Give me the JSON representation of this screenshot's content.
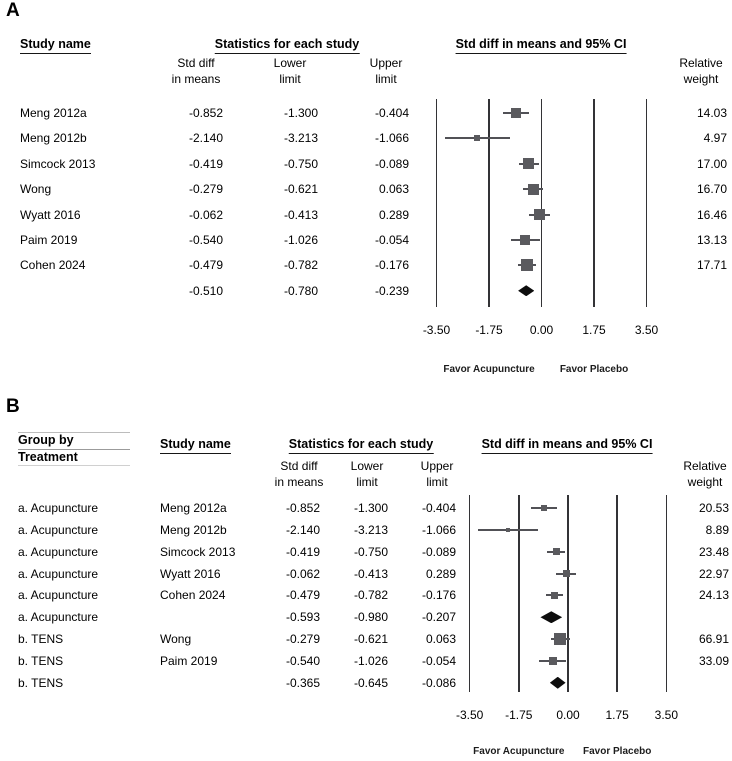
{
  "figure": {
    "colors": {
      "marker": "#5a5a5e",
      "ci_line": "#515156",
      "diamond": "#0d0d0d",
      "gridline": "#333336",
      "text": "#000000"
    },
    "panels": [
      {
        "label": "A",
        "headers": {
          "study": "Study name",
          "stats": "Statistics for each study",
          "ci": "Std diff in means and 95% CI"
        },
        "subheaders": {
          "mean": [
            "Std diff",
            "in means"
          ],
          "lower": [
            "Lower",
            "limit"
          ],
          "upper": [
            "Upper",
            "limit"
          ],
          "weight": [
            "Relative",
            "weight"
          ]
        },
        "rows": [
          {
            "study": "Meng 2012a",
            "mean": "-0.852",
            "lower": "-1.300",
            "upper": "-0.404",
            "weight": "14.03",
            "summary": false
          },
          {
            "study": "Meng 2012b",
            "mean": "-2.140",
            "lower": "-3.213",
            "upper": "-1.066",
            "weight": "4.97",
            "summary": false
          },
          {
            "study": "Simcock 2013",
            "mean": "-0.419",
            "lower": "-0.750",
            "upper": "-0.089",
            "weight": "17.00",
            "summary": false
          },
          {
            "study": "Wong",
            "mean": "-0.279",
            "lower": "-0.621",
            "upper": "0.063",
            "weight": "16.70",
            "summary": false
          },
          {
            "study": "Wyatt 2016",
            "mean": "-0.062",
            "lower": "-0.413",
            "upper": "0.289",
            "weight": "16.46",
            "summary": false
          },
          {
            "study": "Paim 2019",
            "mean": "-0.540",
            "lower": "-1.026",
            "upper": "-0.054",
            "weight": "13.13",
            "summary": false
          },
          {
            "study": "Cohen 2024",
            "mean": "-0.479",
            "lower": "-0.782",
            "upper": "-0.176",
            "weight": "17.71",
            "summary": false
          },
          {
            "study": "",
            "mean": "-0.510",
            "lower": "-0.780",
            "upper": "-0.239",
            "weight": "",
            "summary": true
          }
        ],
        "axis_ticks": [
          "-3.50",
          "-1.75",
          "0.00",
          "1.75",
          "3.50"
        ],
        "favor_left": "Favor Acupuncture",
        "favor_right": "Favor Placebo"
      },
      {
        "label": "B",
        "group_header": [
          "Group by",
          "Treatment"
        ],
        "headers": {
          "study": "Study name",
          "stats": "Statistics for each study",
          "ci": "Std diff in means and 95% CI"
        },
        "subheaders": {
          "mean": [
            "Std diff",
            "in means"
          ],
          "lower": [
            "Lower",
            "limit"
          ],
          "upper": [
            "Upper",
            "limit"
          ],
          "weight": [
            "Relative",
            "weight"
          ]
        },
        "rows": [
          {
            "group": "a. Acupuncture",
            "study": "Meng 2012a",
            "mean": "-0.852",
            "lower": "-1.300",
            "upper": "-0.404",
            "weight": "20.53",
            "summary": false
          },
          {
            "group": "a. Acupuncture",
            "study": "Meng 2012b",
            "mean": "-2.140",
            "lower": "-3.213",
            "upper": "-1.066",
            "weight": "8.89",
            "summary": false
          },
          {
            "group": "a. Acupuncture",
            "study": "Simcock 2013",
            "mean": "-0.419",
            "lower": "-0.750",
            "upper": "-0.089",
            "weight": "23.48",
            "summary": false
          },
          {
            "group": "a. Acupuncture",
            "study": "Wyatt 2016",
            "mean": "-0.062",
            "lower": "-0.413",
            "upper": "0.289",
            "weight": "22.97",
            "summary": false
          },
          {
            "group": "a. Acupuncture",
            "study": "Cohen 2024",
            "mean": "-0.479",
            "lower": "-0.782",
            "upper": "-0.176",
            "weight": "24.13",
            "summary": false
          },
          {
            "group": "a. Acupuncture",
            "study": "",
            "mean": "-0.593",
            "lower": "-0.980",
            "upper": "-0.207",
            "weight": "",
            "summary": true
          },
          {
            "group": "b. TENS",
            "study": "Wong",
            "mean": "-0.279",
            "lower": "-0.621",
            "upper": "0.063",
            "weight": "66.91",
            "summary": false
          },
          {
            "group": "b. TENS",
            "study": "Paim 2019",
            "mean": "-0.540",
            "lower": "-1.026",
            "upper": "-0.054",
            "weight": "33.09",
            "summary": false
          },
          {
            "group": "b. TENS",
            "study": "",
            "mean": "-0.365",
            "lower": "-0.645",
            "upper": "-0.086",
            "weight": "",
            "summary": true
          }
        ],
        "axis_ticks": [
          "-3.50",
          "-1.75",
          "0.00",
          "1.75",
          "3.50"
        ],
        "favor_left": "Favor Acupuncture",
        "favor_right": "Favor Placebo"
      }
    ]
  },
  "chart_data": [
    {
      "type": "scatter",
      "subtype": "forest-plot",
      "title": "A",
      "effect_measure": "Std diff in means and 95% CI",
      "xlabel": "Std diff in means",
      "x_ticks": [
        -3.5,
        -1.75,
        0.0,
        1.75,
        3.5
      ],
      "xlim": [
        -3.5,
        3.5
      ],
      "footer_annotations": [
        "Favor Acupuncture",
        "Favor Placebo"
      ],
      "studies": [
        {
          "name": "Meng 2012a",
          "std_diff_in_means": -0.852,
          "lower_limit": -1.3,
          "upper_limit": -0.404,
          "relative_weight": 14.03
        },
        {
          "name": "Meng 2012b",
          "std_diff_in_means": -2.14,
          "lower_limit": -3.213,
          "upper_limit": -1.066,
          "relative_weight": 4.97
        },
        {
          "name": "Simcock 2013",
          "std_diff_in_means": -0.419,
          "lower_limit": -0.75,
          "upper_limit": -0.089,
          "relative_weight": 17.0
        },
        {
          "name": "Wong",
          "std_diff_in_means": -0.279,
          "lower_limit": -0.621,
          "upper_limit": 0.063,
          "relative_weight": 16.7
        },
        {
          "name": "Wyatt 2016",
          "std_diff_in_means": -0.062,
          "lower_limit": -0.413,
          "upper_limit": 0.289,
          "relative_weight": 16.46
        },
        {
          "name": "Paim 2019",
          "std_diff_in_means": -0.54,
          "lower_limit": -1.026,
          "upper_limit": -0.054,
          "relative_weight": 13.13
        },
        {
          "name": "Cohen 2024",
          "std_diff_in_means": -0.479,
          "lower_limit": -0.782,
          "upper_limit": -0.176,
          "relative_weight": 17.71
        }
      ],
      "overall": {
        "std_diff_in_means": -0.51,
        "lower_limit": -0.78,
        "upper_limit": -0.239
      }
    },
    {
      "type": "scatter",
      "subtype": "forest-plot",
      "title": "B",
      "group_by": "Treatment",
      "effect_measure": "Std diff in means and 95% CI",
      "x_ticks": [
        -3.5,
        -1.75,
        0.0,
        1.75,
        3.5
      ],
      "xlim": [
        -3.5,
        3.5
      ],
      "footer_annotations": [
        "Favor Acupuncture",
        "Favor Placebo"
      ],
      "studies": [
        {
          "group": "a. Acupuncture",
          "name": "Meng 2012a",
          "std_diff_in_means": -0.852,
          "lower_limit": -1.3,
          "upper_limit": -0.404,
          "relative_weight": 20.53
        },
        {
          "group": "a. Acupuncture",
          "name": "Meng 2012b",
          "std_diff_in_means": -2.14,
          "lower_limit": -3.213,
          "upper_limit": -1.066,
          "relative_weight": 8.89
        },
        {
          "group": "a. Acupuncture",
          "name": "Simcock 2013",
          "std_diff_in_means": -0.419,
          "lower_limit": -0.75,
          "upper_limit": -0.089,
          "relative_weight": 23.48
        },
        {
          "group": "a. Acupuncture",
          "name": "Wyatt 2016",
          "std_diff_in_means": -0.062,
          "lower_limit": -0.413,
          "upper_limit": 0.289,
          "relative_weight": 22.97
        },
        {
          "group": "a. Acupuncture",
          "name": "Cohen 2024",
          "std_diff_in_means": -0.479,
          "lower_limit": -0.782,
          "upper_limit": -0.176,
          "relative_weight": 24.13
        },
        {
          "group": "b. TENS",
          "name": "Wong",
          "std_diff_in_means": -0.279,
          "lower_limit": -0.621,
          "upper_limit": 0.063,
          "relative_weight": 66.91
        },
        {
          "group": "b. TENS",
          "name": "Paim 2019",
          "std_diff_in_means": -0.54,
          "lower_limit": -1.026,
          "upper_limit": -0.054,
          "relative_weight": 33.09
        }
      ],
      "group_summaries": [
        {
          "group": "a. Acupuncture",
          "std_diff_in_means": -0.593,
          "lower_limit": -0.98,
          "upper_limit": -0.207
        },
        {
          "group": "b. TENS",
          "std_diff_in_means": -0.365,
          "lower_limit": -0.645,
          "upper_limit": -0.086
        }
      ]
    }
  ]
}
